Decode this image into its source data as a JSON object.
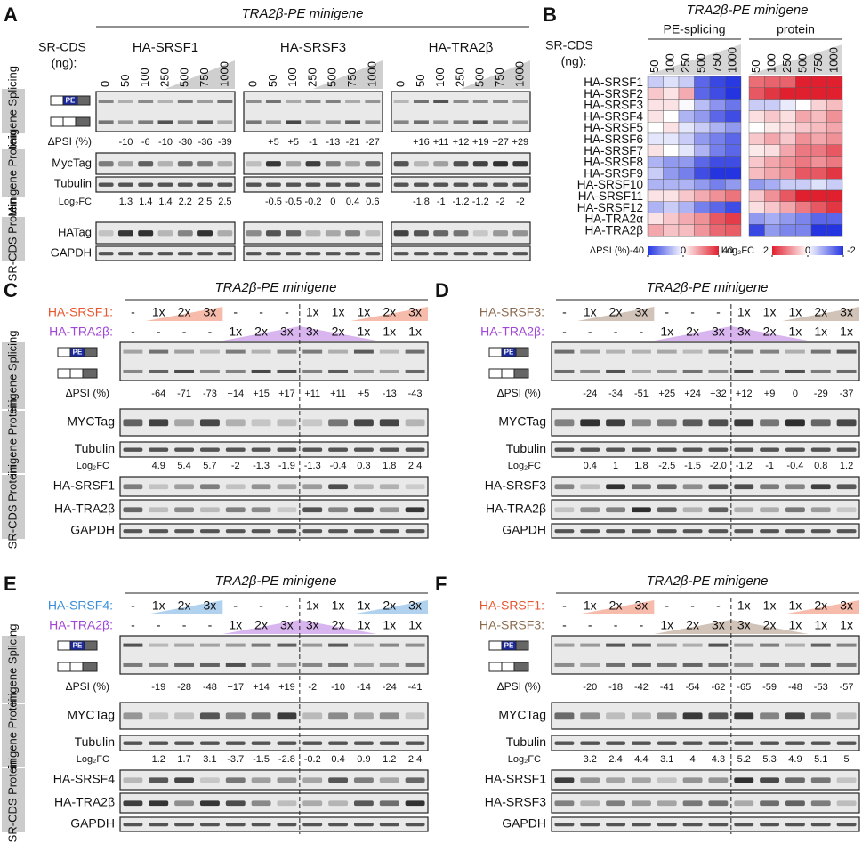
{
  "title": "TRA2β-PE minigene",
  "exon_label": "PE",
  "row_groups": [
    "Minigene Splicing",
    "Minigene Protein",
    "SR-CDS Protein"
  ],
  "labels": {
    "dpsi": "ΔPSI (%)",
    "log2fc": "Log₂FC"
  },
  "panel_a": {
    "label": "A",
    "sr_cds": [
      "SR-CDS",
      "(ng):"
    ],
    "blots": [
      "MycTag",
      "Tubulin",
      "HATag",
      "GAPDH"
    ],
    "groups": [
      {
        "name": "HA-SRSF1",
        "doses": [
          "0",
          "50",
          "100",
          "250",
          "500",
          "750",
          "1000"
        ],
        "dpsi": [
          "-10",
          "-6",
          "-10",
          "-30",
          "-36",
          "-39"
        ],
        "log2fc": [
          "1.3",
          "1.4",
          "1.4",
          "2.2",
          "2.5",
          "2.5"
        ]
      },
      {
        "name": "HA-SRSF3",
        "doses": [
          "0",
          "50",
          "100",
          "250",
          "500",
          "750",
          "1000"
        ],
        "dpsi": [
          "+5",
          "+5",
          "-1",
          "-13",
          "-21",
          "-27"
        ],
        "log2fc": [
          "-0.5",
          "-0.5",
          "-0.2",
          "0",
          "0.4",
          "0.6"
        ]
      },
      {
        "name": "HA-TRA2β",
        "doses": [
          "0",
          "50",
          "100",
          "250",
          "500",
          "750",
          "1000"
        ],
        "dpsi": [
          "+16",
          "+11",
          "+12",
          "+19",
          "+27",
          "+29"
        ],
        "log2fc": [
          "-1.8",
          "-1",
          "-1.2",
          "-1.2",
          "-2",
          "-2"
        ]
      }
    ]
  },
  "panel_b": {
    "label": "B",
    "sr_cds": [
      "SR-CDS",
      "(ng):"
    ],
    "blocks": [
      "PE-splicing",
      "protein"
    ],
    "doses": [
      "50",
      "100",
      "250",
      "500",
      "750",
      "1000"
    ],
    "rows": [
      "HA-SRSF1",
      "HA-SRSF2",
      "HA-SRSF3",
      "HA-SRSF4",
      "HA-SRSF5",
      "HA-SRSF6",
      "HA-SRSF7",
      "HA-SRSF8",
      "HA-SRSF9",
      "HA-SRSF10",
      "HA-SRSF11",
      "HA-SRSF12",
      "HA-TRA2α",
      "HA-TRA2β"
    ],
    "low_color": "#2434e0",
    "high_color": "#e0202e",
    "dpsi_scale": [
      -40,
      0,
      40
    ],
    "log2fc_scale": [
      2,
      0,
      -2
    ],
    "dpsi": [
      [
        -10,
        -6,
        -10,
        -30,
        -36,
        -39
      ],
      [
        10,
        5,
        15,
        -30,
        -35,
        -40
      ],
      [
        5,
        5,
        -1,
        -13,
        -21,
        -27
      ],
      [
        5,
        0,
        -15,
        -20,
        -30,
        -35
      ],
      [
        0,
        5,
        -5,
        -10,
        -15,
        -20
      ],
      [
        -5,
        -5,
        -10,
        -20,
        -25,
        -30
      ],
      [
        5,
        0,
        -5,
        -15,
        -25,
        -30
      ],
      [
        -15,
        -20,
        -20,
        -30,
        -35,
        -35
      ],
      [
        -10,
        -20,
        -25,
        -35,
        -40,
        -40
      ],
      [
        -15,
        -15,
        -15,
        -20,
        -25,
        -20
      ],
      [
        5,
        5,
        10,
        15,
        20,
        25
      ],
      [
        -15,
        -10,
        -15,
        -25,
        -30,
        -35
      ],
      [
        5,
        10,
        15,
        20,
        30,
        35
      ],
      [
        16,
        11,
        12,
        19,
        27,
        29
      ]
    ],
    "log2fc": [
      [
        1.3,
        1.4,
        1.4,
        2.2,
        2.5,
        2.5
      ],
      [
        1.5,
        1.8,
        2,
        2,
        2,
        2
      ],
      [
        -0.5,
        -0.5,
        -0.2,
        0,
        0.4,
        0.6
      ],
      [
        0.3,
        0.5,
        0.3,
        0.8,
        0.6,
        1
      ],
      [
        0,
        0.2,
        0.3,
        0.5,
        0.6,
        0.8
      ],
      [
        0.5,
        0.8,
        0.5,
        1,
        0.8,
        1
      ],
      [
        0.2,
        0.3,
        0.8,
        1.2,
        1.2,
        1.5
      ],
      [
        0.5,
        0.8,
        1,
        1.2,
        1,
        1.2
      ],
      [
        0.6,
        0.8,
        1,
        1.5,
        1.5,
        1.8
      ],
      [
        -1,
        -0.8,
        -0.5,
        -0.5,
        -0.3,
        -0.5
      ],
      [
        0.5,
        1,
        1.5,
        2,
        2,
        2
      ],
      [
        0.3,
        0.5,
        0.8,
        1.2,
        1.5,
        1.8
      ],
      [
        -1,
        -0.8,
        -1,
        -1.2,
        -1.5,
        -1.5
      ],
      [
        -1.8,
        -1,
        -1.2,
        -1.2,
        -2,
        -2
      ]
    ]
  },
  "panel_c": {
    "label": "C",
    "factors": [
      {
        "name": "HA-SRSF1:",
        "color": "#e8562e",
        "lanes": [
          "-",
          "1x",
          "2x",
          "3x",
          "-",
          "-",
          "-",
          "1x",
          "1x",
          "1x",
          "2x",
          "3x"
        ]
      },
      {
        "name": "HA-TRA2β:",
        "color": "#a146d6",
        "lanes": [
          "-",
          "-",
          "-",
          "-",
          "1x",
          "2x",
          "3x",
          "3x",
          "2x",
          "1x",
          "1x",
          "1x"
        ]
      }
    ],
    "dpsi": [
      "-64",
      "-71",
      "-73",
      "+14",
      "+15",
      "+17",
      "+11",
      "+11",
      "+5",
      "-13",
      "-43"
    ],
    "log2fc": [
      "4.9",
      "5.4",
      "5.7",
      "-2",
      "-1.3",
      "-1.9",
      "-1.3",
      "-0.4",
      "0.3",
      "1.8",
      "2.4"
    ],
    "blots": [
      "MYCTag",
      "Tubulin",
      "HA-SRSF1",
      "HA-TRA2β",
      "GAPDH"
    ]
  },
  "panel_d": {
    "label": "D",
    "factors": [
      {
        "name": "HA-SRSF3:",
        "color": "#8c6a4e",
        "lanes": [
          "-",
          "1x",
          "2x",
          "3x",
          "-",
          "-",
          "-",
          "1x",
          "1x",
          "1x",
          "2x",
          "3x"
        ]
      },
      {
        "name": "HA-TRA2β:",
        "color": "#a146d6",
        "lanes": [
          "-",
          "-",
          "-",
          "-",
          "1x",
          "2x",
          "3x",
          "3x",
          "2x",
          "1x",
          "1x",
          "1x"
        ]
      }
    ],
    "dpsi": [
      "-24",
      "-34",
      "-51",
      "+25",
      "+24",
      "+32",
      "+12",
      "+9",
      "0",
      "-29",
      "-37"
    ],
    "log2fc": [
      "0.4",
      "1",
      "1.8",
      "-2.5",
      "-1.5",
      "-2.0",
      "-1.2",
      "-1",
      "-0.4",
      "0.8",
      "1.2"
    ],
    "blots": [
      "MYCTag",
      "Tubulin",
      "HA-SRSF3",
      "HA-TRA2β",
      "GAPDH"
    ]
  },
  "panel_e": {
    "label": "E",
    "factors": [
      {
        "name": "HA-SRSF4:",
        "color": "#3a8fd8",
        "lanes": [
          "-",
          "1x",
          "2x",
          "3x",
          "-",
          "-",
          "-",
          "1x",
          "1x",
          "1x",
          "2x",
          "3x"
        ]
      },
      {
        "name": "HA-TRA2β:",
        "color": "#a146d6",
        "lanes": [
          "-",
          "-",
          "-",
          "-",
          "1x",
          "2x",
          "3x",
          "3x",
          "2x",
          "1x",
          "1x",
          "1x"
        ]
      }
    ],
    "dpsi": [
      "-19",
      "-28",
      "-48",
      "+17",
      "+14",
      "+19",
      "-2",
      "-10",
      "-14",
      "-24",
      "-41"
    ],
    "log2fc": [
      "1.2",
      "1.7",
      "3.1",
      "-3.7",
      "-1.5",
      "-2.8",
      "-0.2",
      "0.4",
      "0.9",
      "1.2",
      "2.4"
    ],
    "blots": [
      "MYCTag",
      "Tubulin",
      "HA-SRSF4",
      "HA-TRA2β",
      "GAPDH"
    ]
  },
  "panel_f": {
    "label": "F",
    "factors": [
      {
        "name": "HA-SRSF1:",
        "color": "#e8562e",
        "lanes": [
          "-",
          "1x",
          "2x",
          "3x",
          "-",
          "-",
          "-",
          "1x",
          "1x",
          "1x",
          "2x",
          "3x"
        ]
      },
      {
        "name": "HA-SRSF3:",
        "color": "#8c6a4e",
        "lanes": [
          "-",
          "-",
          "-",
          "-",
          "1x",
          "2x",
          "3x",
          "3x",
          "2x",
          "1x",
          "1x",
          "1x"
        ]
      }
    ],
    "dpsi": [
      "-20",
      "-18",
      "-42",
      "-41",
      "-54",
      "-62",
      "-65",
      "-59",
      "-48",
      "-53",
      "-57"
    ],
    "log2fc": [
      "3.2",
      "2.4",
      "4.4",
      "3.1",
      "4",
      "4.3",
      "5.2",
      "5.3",
      "4.9",
      "5.1",
      "5"
    ],
    "blots": [
      "MYCTag",
      "Tubulin",
      "HA-SRSF1",
      "HA-SRSF3",
      "GAPDH"
    ]
  }
}
